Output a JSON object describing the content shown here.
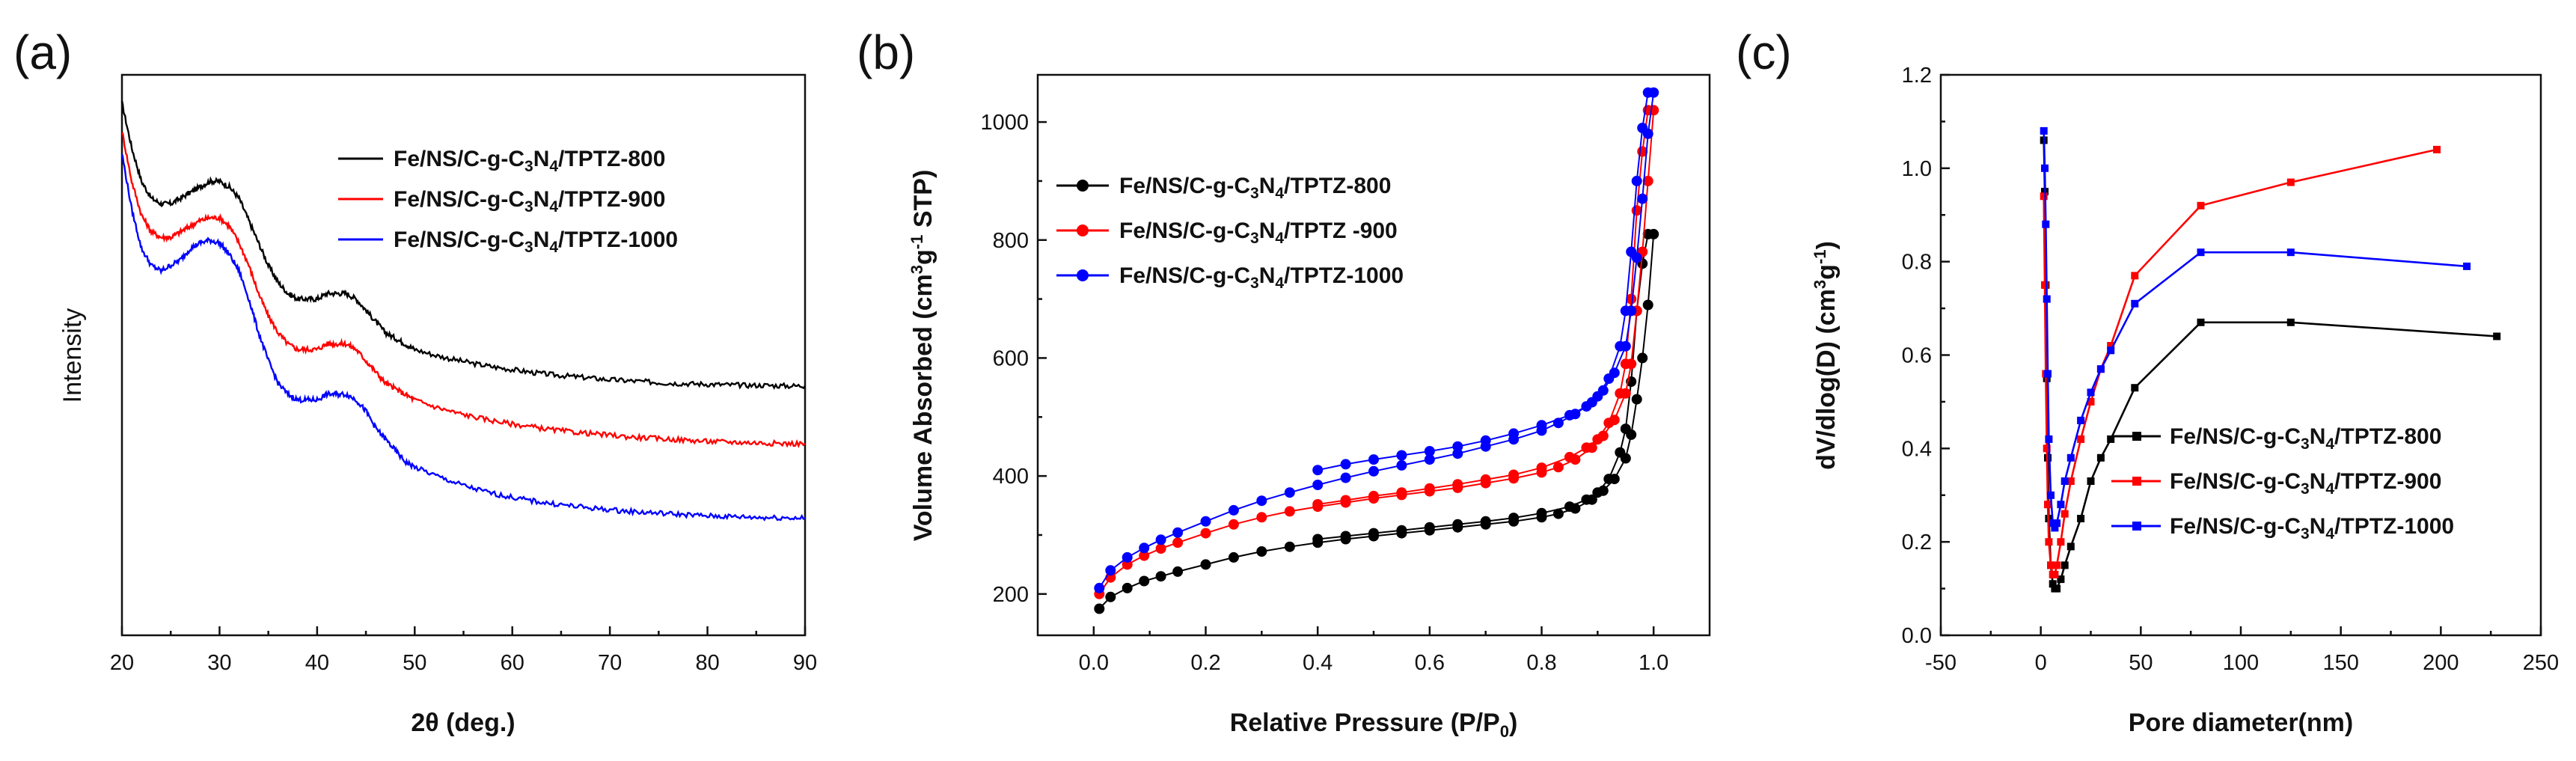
{
  "chart_data": [
    {
      "type": "line",
      "panel": "(a)",
      "xlabel": "2θ (deg.)",
      "ylabel": "Intensity",
      "xlim": [
        20,
        90
      ],
      "ylim": [
        0,
        1
      ],
      "xticks": [
        "20",
        "30",
        "40",
        "50",
        "60",
        "70",
        "80",
        "90"
      ],
      "yticks": [],
      "legend_position": "top-right",
      "series": [
        {
          "name": "Fe/NS/C-g-C3N4/TPTZ-800",
          "legend": {
            "base": "Fe/NS/C-g-C",
            "sub1": "3",
            "mid": "N",
            "sub2": "4",
            "tail": "/TPTZ-800"
          },
          "color": "#000000",
          "x": [
            20,
            21,
            22,
            23,
            24,
            25,
            26,
            27,
            28,
            29,
            30,
            31,
            32,
            33,
            34,
            35,
            36,
            37,
            38,
            39,
            40,
            41,
            42,
            43,
            44,
            45,
            46,
            47,
            48,
            49,
            50,
            52,
            54,
            56,
            58,
            60,
            62,
            64,
            66,
            68,
            70,
            72,
            74,
            76,
            78,
            80,
            82,
            84,
            86,
            88,
            90
          ],
          "y": [
            0.95,
            0.87,
            0.81,
            0.78,
            0.77,
            0.77,
            0.78,
            0.79,
            0.8,
            0.81,
            0.81,
            0.8,
            0.78,
            0.74,
            0.7,
            0.66,
            0.63,
            0.61,
            0.6,
            0.6,
            0.6,
            0.61,
            0.61,
            0.61,
            0.6,
            0.58,
            0.56,
            0.54,
            0.53,
            0.52,
            0.51,
            0.5,
            0.492,
            0.485,
            0.479,
            0.474,
            0.469,
            0.465,
            0.462,
            0.459,
            0.456,
            0.454,
            0.452,
            0.45,
            0.449,
            0.448,
            0.447,
            0.446,
            0.446,
            0.445,
            0.445
          ]
        },
        {
          "name": "Fe/NS/C-g-C3N4/TPTZ-900",
          "legend": {
            "base": "Fe/NS/C-g-C",
            "sub1": "3",
            "mid": "N",
            "sub2": "4",
            "tail": "/TPTZ-900"
          },
          "color": "#ff0000",
          "x": [
            20,
            21,
            22,
            23,
            24,
            25,
            26,
            27,
            28,
            29,
            30,
            31,
            32,
            33,
            34,
            35,
            36,
            37,
            38,
            39,
            40,
            41,
            42,
            43,
            44,
            45,
            46,
            47,
            48,
            49,
            50,
            52,
            54,
            56,
            58,
            60,
            62,
            64,
            66,
            68,
            70,
            72,
            74,
            76,
            78,
            80,
            82,
            84,
            86,
            88,
            90
          ],
          "y": [
            0.9,
            0.81,
            0.75,
            0.72,
            0.71,
            0.71,
            0.72,
            0.73,
            0.74,
            0.745,
            0.745,
            0.73,
            0.7,
            0.66,
            0.61,
            0.57,
            0.54,
            0.52,
            0.51,
            0.51,
            0.51,
            0.52,
            0.52,
            0.52,
            0.51,
            0.49,
            0.47,
            0.45,
            0.44,
            0.43,
            0.42,
            0.408,
            0.398,
            0.39,
            0.383,
            0.377,
            0.372,
            0.367,
            0.363,
            0.36,
            0.357,
            0.354,
            0.352,
            0.35,
            0.348,
            0.346,
            0.345,
            0.344,
            0.343,
            0.342,
            0.342
          ]
        },
        {
          "name": "Fe/NS/C-g-C3N4/TPTZ-1000",
          "legend": {
            "base": "Fe/NS/C-g-C",
            "sub1": "3",
            "mid": "N",
            "sub2": "4",
            "tail": "/TPTZ-1000"
          },
          "color": "#0000ff",
          "x": [
            20,
            21,
            22,
            23,
            24,
            25,
            26,
            27,
            28,
            29,
            30,
            31,
            32,
            33,
            34,
            35,
            36,
            37,
            38,
            39,
            40,
            41,
            42,
            43,
            44,
            45,
            46,
            47,
            48,
            49,
            50,
            52,
            54,
            56,
            58,
            60,
            62,
            64,
            66,
            68,
            70,
            72,
            74,
            76,
            78,
            80,
            82,
            84,
            86,
            88,
            90
          ],
          "y": [
            0.86,
            0.76,
            0.69,
            0.66,
            0.65,
            0.66,
            0.67,
            0.69,
            0.7,
            0.705,
            0.7,
            0.68,
            0.65,
            0.6,
            0.54,
            0.49,
            0.45,
            0.43,
            0.42,
            0.42,
            0.42,
            0.43,
            0.43,
            0.43,
            0.42,
            0.4,
            0.37,
            0.35,
            0.33,
            0.31,
            0.3,
            0.286,
            0.273,
            0.262,
            0.253,
            0.246,
            0.24,
            0.235,
            0.231,
            0.227,
            0.224,
            0.221,
            0.219,
            0.217,
            0.215,
            0.213,
            0.212,
            0.211,
            0.21,
            0.21,
            0.209
          ]
        }
      ]
    },
    {
      "type": "line",
      "panel": "(b)",
      "xlabel": "Relative Pressure (P/P0)",
      "xlabel_parts": {
        "base": "Relative Pressure (P/P",
        "sub": "0",
        "tail": ")"
      },
      "ylabel": "Volume Absorbed (cm3g-1 STP)",
      "ylabel_parts": {
        "base": "Volume Absorbed (cm",
        "sup1": "3",
        "mid": "g",
        "sup2": "-1",
        "tail": " STP)"
      },
      "xlim": [
        -0.1,
        1.1
      ],
      "ylim": [
        130,
        1080
      ],
      "xticks": [
        "0.0",
        "0.2",
        "0.4",
        "0.6",
        "0.8",
        "1.0"
      ],
      "yticks": [
        "200",
        "400",
        "600",
        "800",
        "1000"
      ],
      "legend_position": "top-left",
      "series": [
        {
          "name": "Fe/NS/C-g-C3N4/TPTZ-800",
          "legend": {
            "base": "Fe/NS/C-g-C",
            "sub1": "3",
            "mid": "N",
            "sub2": "4",
            "tail": "/TPTZ-800"
          },
          "color": "#000000",
          "adsorption": {
            "x": [
              0.01,
              0.03,
              0.06,
              0.09,
              0.12,
              0.15,
              0.2,
              0.25,
              0.3,
              0.35,
              0.4,
              0.45,
              0.5,
              0.55,
              0.6,
              0.65,
              0.7,
              0.75,
              0.8,
              0.83,
              0.86,
              0.89,
              0.91,
              0.93,
              0.95,
              0.96,
              0.97,
              0.98,
              0.99,
              1.0
            ],
            "y": [
              175,
              195,
              210,
              222,
              230,
              238,
              250,
              262,
              272,
              280,
              287,
              293,
              298,
              303,
              308,
              313,
              318,
              323,
              330,
              336,
              345,
              360,
              375,
              395,
              430,
              470,
              530,
              600,
              690,
              810
            ]
          },
          "desorption": {
            "x": [
              0.99,
              0.98,
              0.97,
              0.96,
              0.95,
              0.94,
              0.92,
              0.9,
              0.88,
              0.85,
              0.8,
              0.75,
              0.7,
              0.65,
              0.6,
              0.55,
              0.5,
              0.45,
              0.4
            ],
            "y": [
              810,
              760,
              680,
              560,
              480,
              440,
              395,
              372,
              360,
              348,
              337,
              329,
              323,
              318,
              313,
              308,
              303,
              298,
              293
            ]
          }
        },
        {
          "name": "Fe/NS/C-g-C3N4/TPTZ -900",
          "legend": {
            "base": "Fe/NS/C-g-C",
            "sub1": "3",
            "mid": "N",
            "sub2": "4",
            "tail": "/TPTZ -900"
          },
          "color": "#ff0000",
          "adsorption": {
            "x": [
              0.01,
              0.03,
              0.06,
              0.09,
              0.12,
              0.15,
              0.2,
              0.25,
              0.3,
              0.35,
              0.4,
              0.45,
              0.5,
              0.55,
              0.6,
              0.65,
              0.7,
              0.75,
              0.8,
              0.83,
              0.86,
              0.89,
              0.91,
              0.93,
              0.95,
              0.96,
              0.97,
              0.98,
              0.99,
              1.0
            ],
            "y": [
              200,
              228,
              250,
              265,
              277,
              287,
              303,
              318,
              330,
              340,
              348,
              355,
              362,
              368,
              374,
              380,
              388,
              396,
              406,
              415,
              428,
              448,
              468,
              495,
              540,
              590,
              680,
              780,
              900,
              1020
            ]
          },
          "desorption": {
            "x": [
              0.99,
              0.98,
              0.97,
              0.96,
              0.95,
              0.94,
              0.92,
              0.9,
              0.88,
              0.85,
              0.8,
              0.75,
              0.7,
              0.65,
              0.6,
              0.55,
              0.5,
              0.45,
              0.4
            ],
            "y": [
              1020,
              950,
              850,
              700,
              590,
              540,
              490,
              462,
              448,
              432,
              414,
              402,
              394,
              386,
              379,
              372,
              366,
              359,
              352
            ]
          }
        },
        {
          "name": "Fe/NS/C-g-C3N4/TPTZ-1000",
          "legend": {
            "base": "Fe/NS/C-g-C",
            "sub1": "3",
            "mid": "N",
            "sub2": "4",
            "tail": "/TPTZ-1000"
          },
          "color": "#0000ff",
          "adsorption": {
            "x": [
              0.01,
              0.03,
              0.06,
              0.09,
              0.12,
              0.15,
              0.2,
              0.25,
              0.3,
              0.35,
              0.4,
              0.45,
              0.5,
              0.55,
              0.6,
              0.65,
              0.7,
              0.75,
              0.8,
              0.83,
              0.86,
              0.89,
              0.91,
              0.93,
              0.95,
              0.96,
              0.97,
              0.98,
              0.99,
              1.0
            ],
            "y": [
              210,
              240,
              262,
              278,
              292,
              304,
              323,
              342,
              358,
              372,
              385,
              397,
              408,
              418,
              428,
              438,
              450,
              462,
              477,
              490,
              505,
              525,
              545,
              575,
              620,
              680,
              770,
              870,
              980,
              1050
            ]
          },
          "desorption": {
            "x": [
              0.99,
              0.98,
              0.97,
              0.96,
              0.95,
              0.94,
              0.92,
              0.9,
              0.88,
              0.85,
              0.8,
              0.75,
              0.7,
              0.65,
              0.6,
              0.55,
              0.5,
              0.45,
              0.4
            ],
            "y": [
              1050,
              990,
              900,
              780,
              680,
              620,
              565,
              535,
              518,
              503,
              486,
              472,
              460,
              450,
              442,
              435,
              428,
              420,
              410
            ]
          }
        }
      ]
    },
    {
      "type": "line",
      "panel": "(c)",
      "xlabel": "Pore diameter(nm)",
      "ylabel": "dV/dlog(D) (cm3g-1)",
      "ylabel_parts": {
        "base": "dV/dlog(D) (cm",
        "sup1": "3",
        "mid": "g",
        "sup2": "-1",
        "tail": ")"
      },
      "xlim": [
        -50,
        250
      ],
      "ylim": [
        0,
        1.2
      ],
      "xticks": [
        "-50",
        "0",
        "50",
        "100",
        "150",
        "200",
        "250"
      ],
      "yticks": [
        "0.0",
        "0.2",
        "0.4",
        "0.6",
        "0.8",
        "1.0",
        "1.2"
      ],
      "legend_position": "bottom-right",
      "series": [
        {
          "name": "Fe/NS/C-g-C3N4/TPTZ-800",
          "legend": {
            "base": "Fe/NS/C-g-C",
            "sub1": "3",
            "mid": "N",
            "sub2": "4",
            "tail": "/TPTZ-800"
          },
          "color": "#000000",
          "x": [
            1.5,
            2,
            2.5,
            3,
            3.5,
            4,
            5,
            6,
            7,
            8,
            10,
            12,
            15,
            20,
            25,
            30,
            35,
            47,
            80,
            125,
            228
          ],
          "y": [
            1.06,
            0.95,
            0.75,
            0.55,
            0.38,
            0.25,
            0.15,
            0.11,
            0.1,
            0.1,
            0.12,
            0.15,
            0.19,
            0.25,
            0.33,
            0.38,
            0.42,
            0.53,
            0.67,
            0.67,
            0.64
          ]
        },
        {
          "name": "Fe/NS/C-g-C3N4/TPTZ-900",
          "legend": {
            "base": "Fe/NS/C-g-C",
            "sub1": "3",
            "mid": "N",
            "sub2": "4",
            "tail": "/TPTZ-900"
          },
          "color": "#ff0000",
          "x": [
            1.5,
            2,
            2.5,
            3,
            3.5,
            4,
            5,
            6,
            7,
            8,
            10,
            12,
            15,
            20,
            25,
            30,
            35,
            47,
            80,
            125,
            198
          ],
          "y": [
            0.94,
            0.75,
            0.56,
            0.4,
            0.28,
            0.2,
            0.15,
            0.13,
            0.13,
            0.15,
            0.2,
            0.26,
            0.33,
            0.42,
            0.5,
            0.57,
            0.62,
            0.77,
            0.92,
            0.97,
            1.04
          ]
        },
        {
          "name": "Fe/NS/C-g-C3N4/TPTZ-1000",
          "legend": {
            "base": "Fe/NS/C-g-C",
            "sub1": "3",
            "mid": "N",
            "sub2": "4",
            "tail": "/TPTZ-1000"
          },
          "color": "#0000ff",
          "x": [
            1.5,
            2,
            2.5,
            3,
            3.5,
            4,
            5,
            6,
            7,
            8,
            10,
            12,
            15,
            20,
            25,
            30,
            35,
            47,
            80,
            125,
            213
          ],
          "y": [
            1.08,
            1.0,
            0.88,
            0.72,
            0.56,
            0.42,
            0.3,
            0.24,
            0.23,
            0.24,
            0.28,
            0.33,
            0.38,
            0.46,
            0.52,
            0.57,
            0.61,
            0.71,
            0.82,
            0.82,
            0.79
          ]
        }
      ]
    }
  ]
}
